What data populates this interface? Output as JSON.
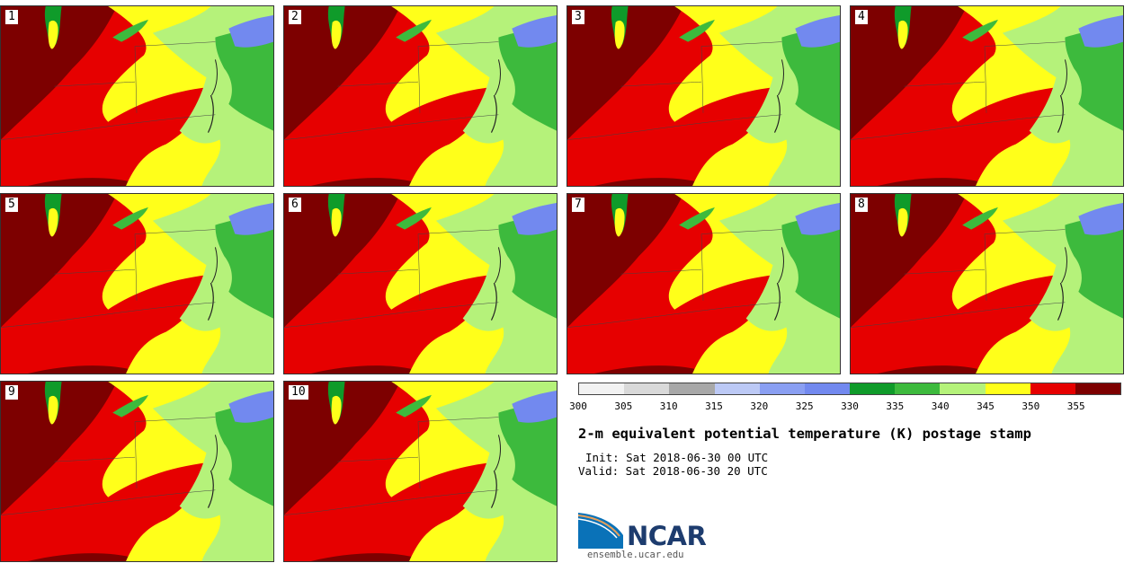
{
  "stamps": [
    "1",
    "2",
    "3",
    "4",
    "5",
    "6",
    "7",
    "8",
    "9",
    "10"
  ],
  "colorbar": {
    "colors": [
      "#f2f2f2",
      "#d9d9d9",
      "#a8a8a8",
      "#bcc9f5",
      "#8a9ff2",
      "#7289ef",
      "#0f9b2a",
      "#3dba3d",
      "#b5f27a",
      "#ffff1a",
      "#e60000",
      "#7d0000"
    ],
    "ticks": [
      "300",
      "305",
      "310",
      "315",
      "320",
      "325",
      "330",
      "335",
      "340",
      "345",
      "350",
      "355"
    ]
  },
  "title": "2-m equivalent potential temperature (K) postage stamp",
  "init": "Init: Sat 2018-06-30 00 UTC",
  "valid": "Valid: Sat 2018-06-30 20 UTC",
  "logo": {
    "text": "NCAR",
    "url": "ensemble.ucar.edu"
  },
  "colors": {
    "dark_red": "#7d0000",
    "red": "#e60000",
    "yellow": "#ffff1a",
    "light_green": "#b5f27a",
    "green": "#3dba3d",
    "dark_green": "#0f9b2a",
    "blue": "#7289ef",
    "water": "#bcc9f5"
  }
}
